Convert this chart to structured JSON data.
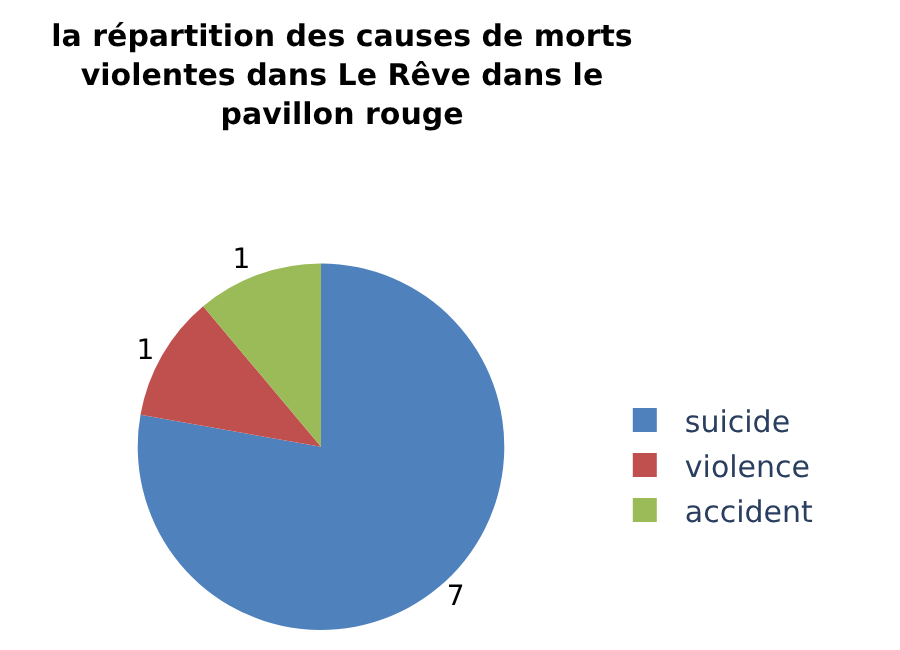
{
  "chart_data": {
    "type": "pie",
    "title": "la répartition des causes de morts violentes dans Le Rêve dans le pavillon rouge",
    "categories": [
      "suicide",
      "violence",
      "accident"
    ],
    "values": [
      7,
      1,
      1
    ],
    "colors": [
      "#4f81bd",
      "#c0504d",
      "#9bbb59"
    ],
    "data_labels": true,
    "legend": "right"
  }
}
